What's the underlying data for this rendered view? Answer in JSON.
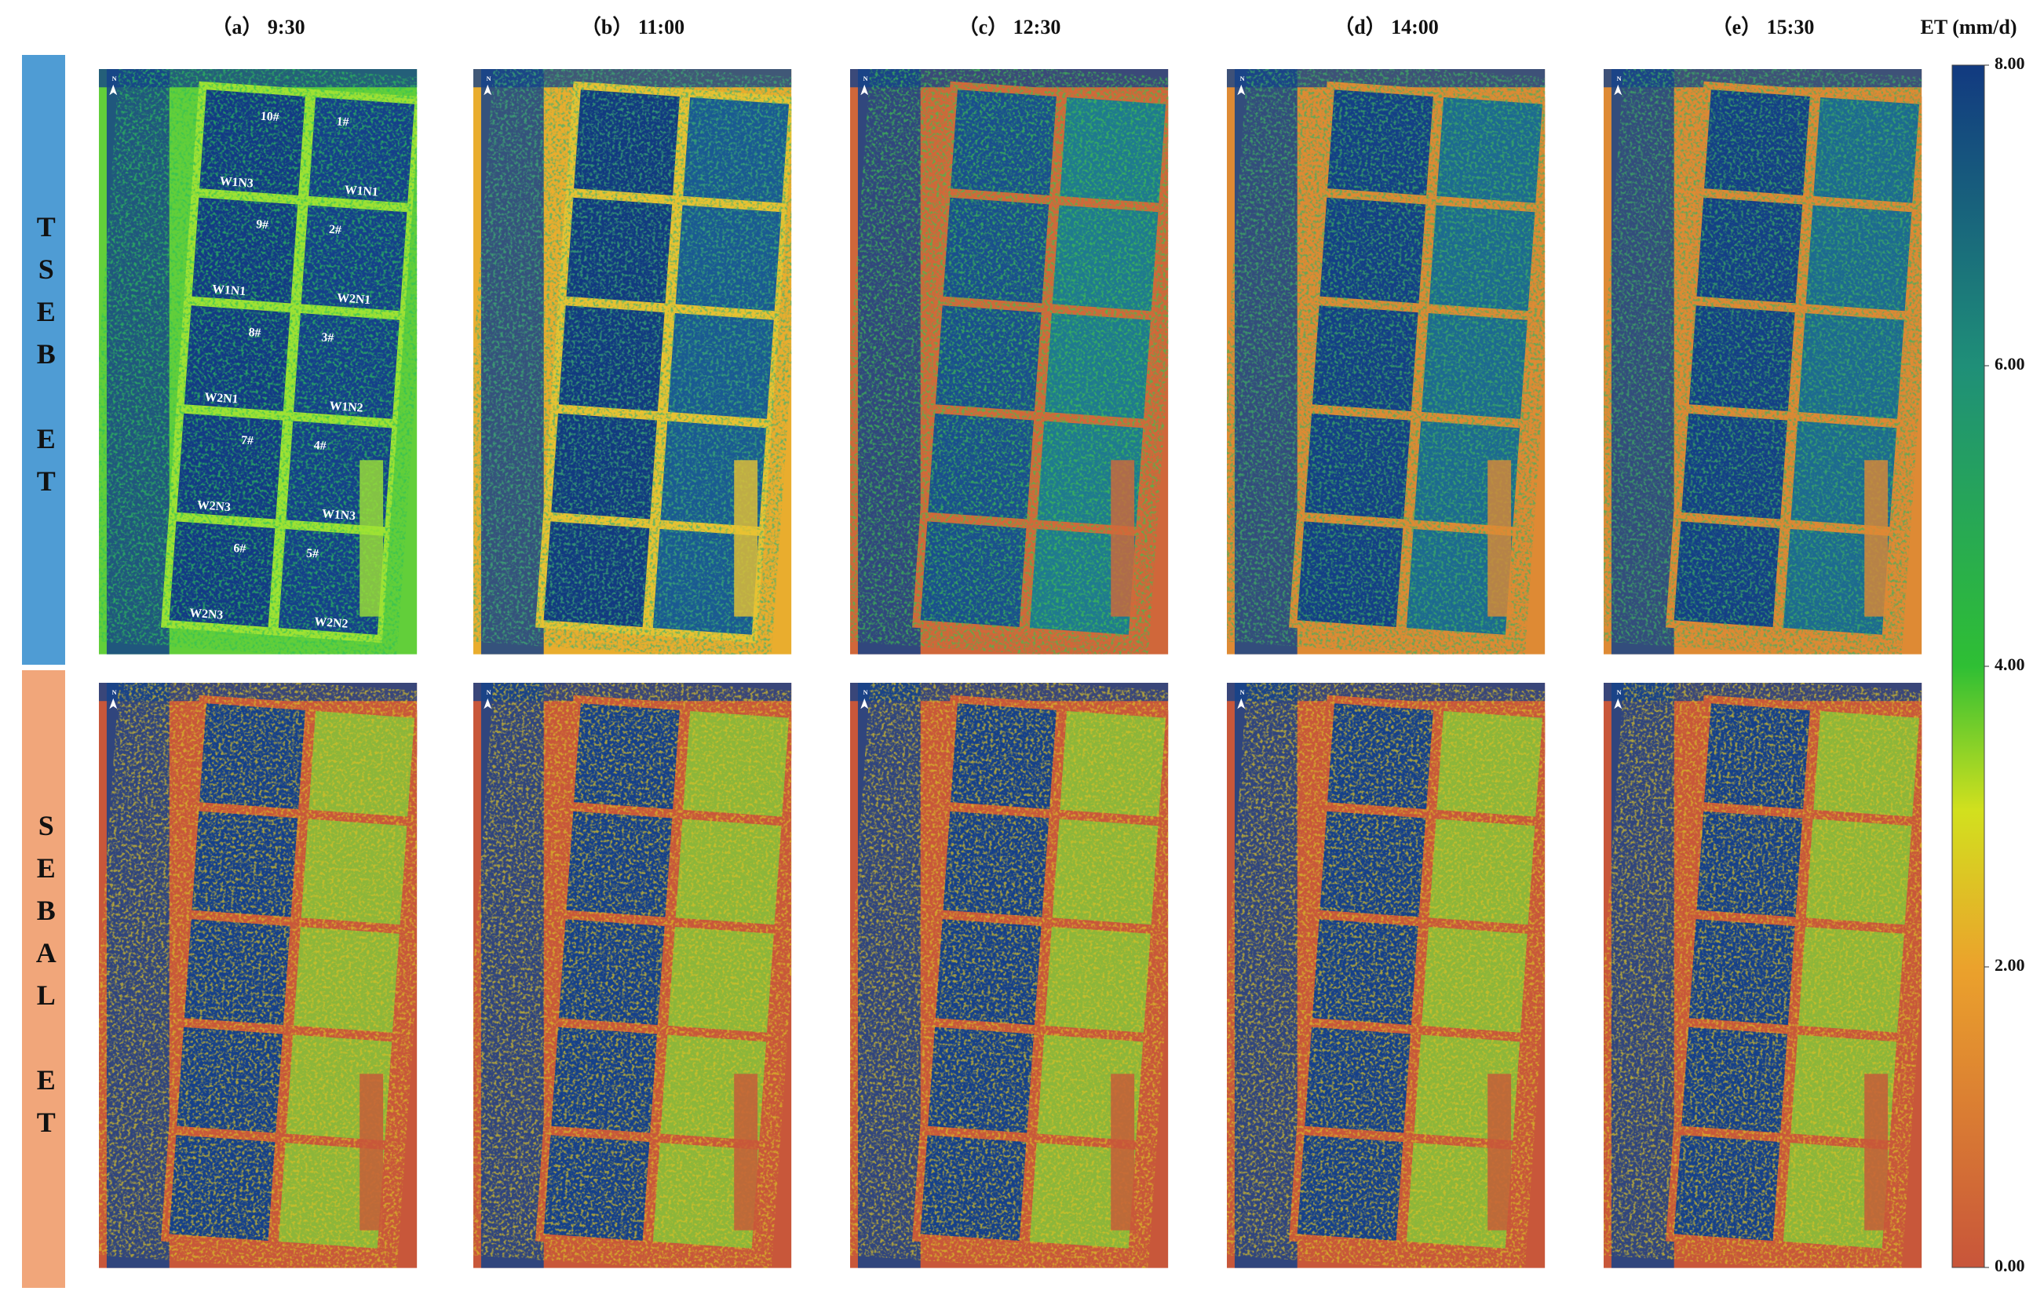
{
  "figure": {
    "column_titles": [
      "（a） 9:30",
      "（b） 11:00",
      "（c） 12:30",
      "（d） 14:00",
      "（e） 15:30"
    ],
    "row_labels": [
      "TSEB ET",
      "SEBAL ET"
    ],
    "north_label": "N",
    "plots": [
      {
        "number": "10#",
        "treatment": "W1N3"
      },
      {
        "number": "9#",
        "treatment": "W1N1"
      },
      {
        "number": "8#",
        "treatment": "W2N1"
      },
      {
        "number": "7#",
        "treatment": "W2N3"
      },
      {
        "number": "6#",
        "treatment": "W2N3"
      },
      {
        "number": "1#",
        "treatment": "W1N1"
      },
      {
        "number": "2#",
        "treatment": "W2N1"
      },
      {
        "number": "3#",
        "treatment": "W1N2"
      },
      {
        "number": "4#",
        "treatment": "W1N3"
      },
      {
        "number": "5#",
        "treatment": "W2N2"
      }
    ],
    "colorbar": {
      "title": "ET (mm/d)",
      "lim": [
        0,
        8
      ],
      "ticks": [
        {
          "value": 8,
          "label": "8.00"
        },
        {
          "value": 6,
          "label": "6.00"
        },
        {
          "value": 4,
          "label": "4.00"
        },
        {
          "value": 2,
          "label": "2.00"
        },
        {
          "value": 0,
          "label": "0.00"
        }
      ]
    }
  }
}
